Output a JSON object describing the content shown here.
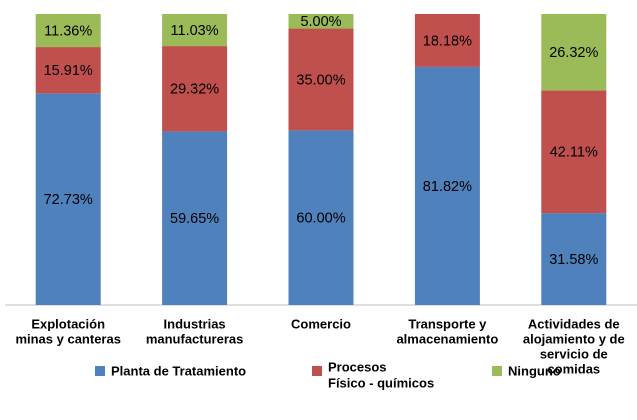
{
  "chart_data": {
    "type": "stacked_bar",
    "categories": [
      [
        "Explotación",
        "minas y canteras"
      ],
      [
        "Industrias",
        "manufactureras"
      ],
      [
        "Comercio"
      ],
      [
        "Transporte  y",
        "almacenamiento"
      ],
      [
        "Actividades de",
        "alojamiento y de",
        "servicio de",
        "comidas"
      ]
    ],
    "ylim": [
      0,
      100
    ],
    "series": [
      {
        "name": [
          "Planta de Tratamiento"
        ],
        "color": "#4f81bd",
        "values": [
          72.73,
          59.65,
          60.0,
          81.82,
          31.58
        ],
        "value_labels": [
          "72.73%",
          "59.65%",
          "60.00%",
          "81.82%",
          "31.58%"
        ]
      },
      {
        "name": [
          "Procesos",
          "Físico - químicos"
        ],
        "color": "#c0504d",
        "values": [
          15.91,
          29.32,
          35.0,
          18.18,
          42.11
        ],
        "value_labels": [
          "15.91%",
          "29.32%",
          "35.00%",
          "18.18%",
          "42.11%"
        ]
      },
      {
        "name": [
          "Ninguno"
        ],
        "color": "#9bbb59",
        "values": [
          11.36,
          11.03,
          5.0,
          0,
          26.32
        ],
        "value_labels": [
          "11.36%",
          "11.03%",
          "5.00%",
          null,
          "26.32%"
        ]
      }
    ],
    "legend": "bottom"
  }
}
